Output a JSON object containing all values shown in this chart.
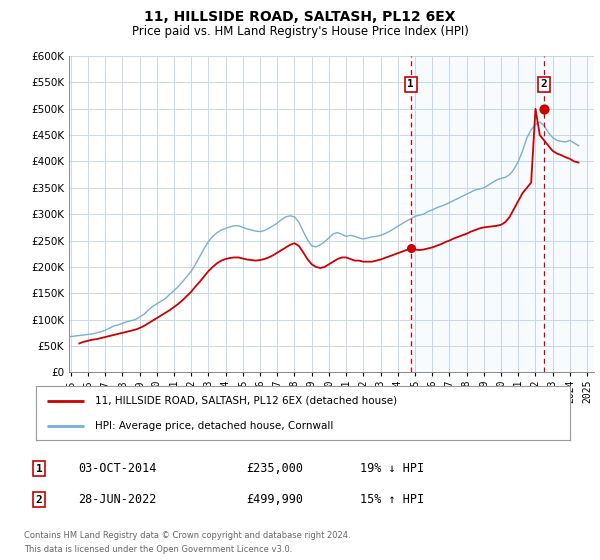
{
  "title": "11, HILLSIDE ROAD, SALTASH, PL12 6EX",
  "subtitle": "Price paid vs. HM Land Registry's House Price Index (HPI)",
  "legend_label_red": "11, HILLSIDE ROAD, SALTASH, PL12 6EX (detached house)",
  "legend_label_blue": "HPI: Average price, detached house, Cornwall",
  "footer1": "Contains HM Land Registry data © Crown copyright and database right 2024.",
  "footer2": "This data is licensed under the Open Government Licence v3.0.",
  "annotation1_label": "1",
  "annotation1_date": "03-OCT-2014",
  "annotation1_price": "£235,000",
  "annotation1_hpi": "19% ↓ HPI",
  "annotation2_label": "2",
  "annotation2_date": "28-JUN-2022",
  "annotation2_price": "£499,990",
  "annotation2_hpi": "15% ↑ HPI",
  "red_color": "#cc0000",
  "blue_color": "#7aaed6",
  "background_color": "#ffffff",
  "grid_color": "#c8d8e8",
  "ylim": [
    0,
    600000
  ],
  "yticks": [
    0,
    50000,
    100000,
    150000,
    200000,
    250000,
    300000,
    350000,
    400000,
    450000,
    500000,
    550000,
    600000
  ],
  "xlim_start": 1994.9,
  "xlim_end": 2025.4,
  "marker1_x": 2014.75,
  "marker1_y": 235000,
  "marker2_x": 2022.5,
  "marker2_y": 499990,
  "vline1_x": 2014.75,
  "vline2_x": 2022.5,
  "hpi_data_x": [
    1995.0,
    1995.25,
    1995.5,
    1995.75,
    1996.0,
    1996.25,
    1996.5,
    1996.75,
    1997.0,
    1997.25,
    1997.5,
    1997.75,
    1998.0,
    1998.25,
    1998.5,
    1998.75,
    1999.0,
    1999.25,
    1999.5,
    1999.75,
    2000.0,
    2000.25,
    2000.5,
    2000.75,
    2001.0,
    2001.25,
    2001.5,
    2001.75,
    2002.0,
    2002.25,
    2002.5,
    2002.75,
    2003.0,
    2003.25,
    2003.5,
    2003.75,
    2004.0,
    2004.25,
    2004.5,
    2004.75,
    2005.0,
    2005.25,
    2005.5,
    2005.75,
    2006.0,
    2006.25,
    2006.5,
    2006.75,
    2007.0,
    2007.25,
    2007.5,
    2007.75,
    2008.0,
    2008.25,
    2008.5,
    2008.75,
    2009.0,
    2009.25,
    2009.5,
    2009.75,
    2010.0,
    2010.25,
    2010.5,
    2010.75,
    2011.0,
    2011.25,
    2011.5,
    2011.75,
    2012.0,
    2012.25,
    2012.5,
    2012.75,
    2013.0,
    2013.25,
    2013.5,
    2013.75,
    2014.0,
    2014.25,
    2014.5,
    2014.75,
    2015.0,
    2015.25,
    2015.5,
    2015.75,
    2016.0,
    2016.25,
    2016.5,
    2016.75,
    2017.0,
    2017.25,
    2017.5,
    2017.75,
    2018.0,
    2018.25,
    2018.5,
    2018.75,
    2019.0,
    2019.25,
    2019.5,
    2019.75,
    2020.0,
    2020.25,
    2020.5,
    2020.75,
    2021.0,
    2021.25,
    2021.5,
    2021.75,
    2022.0,
    2022.25,
    2022.5,
    2022.75,
    2023.0,
    2023.25,
    2023.5,
    2023.75,
    2024.0,
    2024.25,
    2024.5
  ],
  "hpi_data_y": [
    68000,
    69000,
    70000,
    71000,
    72000,
    73000,
    75000,
    77000,
    80000,
    84000,
    88000,
    90000,
    93000,
    96000,
    98000,
    100000,
    105000,
    110000,
    118000,
    125000,
    130000,
    135000,
    140000,
    148000,
    155000,
    163000,
    172000,
    182000,
    192000,
    205000,
    220000,
    235000,
    248000,
    258000,
    265000,
    270000,
    273000,
    276000,
    278000,
    278000,
    275000,
    272000,
    270000,
    268000,
    267000,
    269000,
    273000,
    278000,
    283000,
    290000,
    295000,
    297000,
    295000,
    285000,
    268000,
    252000,
    240000,
    238000,
    242000,
    248000,
    255000,
    263000,
    265000,
    262000,
    258000,
    260000,
    258000,
    255000,
    253000,
    255000,
    257000,
    258000,
    260000,
    263000,
    267000,
    272000,
    277000,
    282000,
    287000,
    291000,
    296000,
    298000,
    300000,
    305000,
    308000,
    312000,
    315000,
    318000,
    322000,
    326000,
    330000,
    334000,
    338000,
    342000,
    346000,
    348000,
    350000,
    355000,
    360000,
    365000,
    368000,
    370000,
    375000,
    385000,
    400000,
    420000,
    445000,
    460000,
    470000,
    475000,
    468000,
    455000,
    445000,
    440000,
    438000,
    437000,
    440000,
    435000,
    430000
  ],
  "red_data_x": [
    1995.5,
    1995.75,
    1996.0,
    1996.25,
    1996.5,
    1996.75,
    1997.0,
    1997.25,
    1997.5,
    1997.75,
    1998.0,
    1998.25,
    1998.5,
    1998.75,
    1999.0,
    1999.25,
    1999.5,
    1999.75,
    2000.0,
    2000.25,
    2000.5,
    2000.75,
    2001.0,
    2001.25,
    2001.5,
    2001.75,
    2002.0,
    2002.25,
    2002.5,
    2002.75,
    2003.0,
    2003.25,
    2003.5,
    2003.75,
    2004.0,
    2004.25,
    2004.5,
    2004.75,
    2005.0,
    2005.25,
    2005.5,
    2005.75,
    2006.0,
    2006.25,
    2006.5,
    2006.75,
    2007.0,
    2007.25,
    2007.5,
    2007.75,
    2008.0,
    2008.25,
    2008.5,
    2008.75,
    2009.0,
    2009.25,
    2009.5,
    2009.75,
    2010.0,
    2010.25,
    2010.5,
    2010.75,
    2011.0,
    2011.25,
    2011.5,
    2011.75,
    2012.0,
    2012.25,
    2012.5,
    2012.75,
    2013.0,
    2013.25,
    2013.5,
    2013.75,
    2014.0,
    2014.25,
    2014.5,
    2014.75,
    2015.0,
    2015.25,
    2015.5,
    2015.75,
    2016.0,
    2016.25,
    2016.5,
    2016.75,
    2017.0,
    2017.25,
    2017.5,
    2017.75,
    2018.0,
    2018.25,
    2018.5,
    2018.75,
    2019.0,
    2019.25,
    2019.5,
    2019.75,
    2020.0,
    2020.25,
    2020.5,
    2020.75,
    2021.0,
    2021.25,
    2021.5,
    2021.75,
    2022.0,
    2022.25,
    2022.5,
    2022.75,
    2023.0,
    2023.25,
    2023.5,
    2023.75,
    2024.0,
    2024.25,
    2024.5
  ],
  "red_data_y": [
    55000,
    58000,
    60000,
    62000,
    63000,
    65000,
    67000,
    69000,
    71000,
    73000,
    75000,
    77000,
    79000,
    81000,
    84000,
    88000,
    93000,
    98000,
    103000,
    108000,
    113000,
    118000,
    124000,
    130000,
    137000,
    145000,
    153000,
    163000,
    172000,
    182000,
    192000,
    200000,
    207000,
    212000,
    215000,
    217000,
    218000,
    218000,
    216000,
    214000,
    213000,
    212000,
    213000,
    215000,
    218000,
    222000,
    227000,
    232000,
    237000,
    242000,
    245000,
    240000,
    228000,
    215000,
    205000,
    200000,
    198000,
    200000,
    205000,
    210000,
    215000,
    218000,
    218000,
    215000,
    212000,
    212000,
    210000,
    210000,
    210000,
    212000,
    214000,
    217000,
    220000,
    223000,
    226000,
    229000,
    232000,
    235000,
    233000,
    232000,
    233000,
    235000,
    237000,
    240000,
    243000,
    247000,
    250000,
    254000,
    257000,
    260000,
    263000,
    267000,
    270000,
    273000,
    275000,
    276000,
    277000,
    278000,
    280000,
    285000,
    295000,
    310000,
    325000,
    340000,
    350000,
    360000,
    499990,
    450000,
    440000,
    430000,
    420000,
    415000,
    412000,
    408000,
    405000,
    400000,
    398000
  ]
}
